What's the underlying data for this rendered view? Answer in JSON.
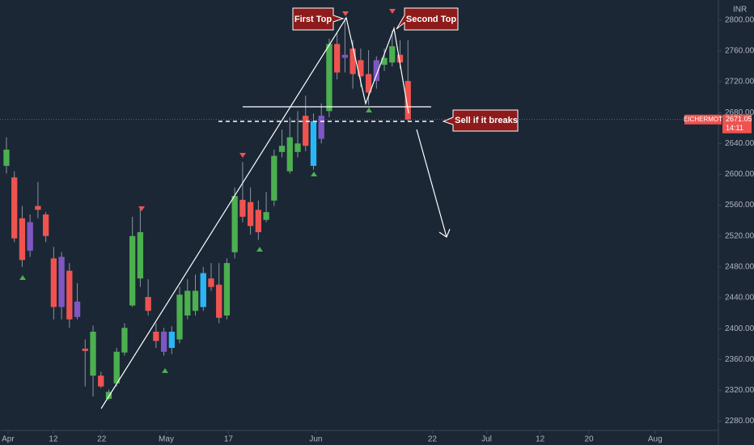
{
  "chart_data": {
    "type": "candlestick",
    "symbol": "EICHERMOT",
    "unit": "INR",
    "last_price": 2671.05,
    "countdown": "14:11",
    "annotations": [
      "First Top",
      "Second Top",
      "Sell if it breaks"
    ],
    "ylim": [
      2268,
      2826
    ],
    "yticks": [
      {
        "value": 2280,
        "label": "2280.00"
      },
      {
        "value": 2320,
        "label": "2320.00"
      },
      {
        "value": 2360,
        "label": "2360.00"
      },
      {
        "value": 2400,
        "label": "2400.00"
      },
      {
        "value": 2440,
        "label": "2440.00"
      },
      {
        "value": 2480,
        "label": "2480.00"
      },
      {
        "value": 2520,
        "label": "2520.00"
      },
      {
        "value": 2560,
        "label": "2560.00"
      },
      {
        "value": 2600,
        "label": "2600.00"
      },
      {
        "value": 2640,
        "label": "2640.00"
      },
      {
        "value": 2680,
        "label": "2680.00"
      },
      {
        "value": 2720,
        "label": "2720.00"
      },
      {
        "value": 2760,
        "label": "2760.00"
      },
      {
        "value": 2800,
        "label": "2800.00"
      }
    ],
    "xlim": [
      -0.82,
      90.44
    ],
    "xticks": [
      {
        "value": 0.2,
        "label": "Apr"
      },
      {
        "value": 5.96,
        "label": "12"
      },
      {
        "value": 12.1,
        "label": "22"
      },
      {
        "value": 20.3,
        "label": "May"
      },
      {
        "value": 28.2,
        "label": "17"
      },
      {
        "value": 39.3,
        "label": "Jun"
      },
      {
        "value": 54.1,
        "label": "22"
      },
      {
        "value": 61.0,
        "label": "Jul"
      },
      {
        "value": 67.8,
        "label": "12"
      },
      {
        "value": 74.0,
        "label": "20"
      },
      {
        "value": 82.4,
        "label": "Aug"
      }
    ],
    "candles": [
      {
        "open": 2611,
        "high": 2648,
        "low": 2601,
        "close": 2632,
        "color": "#4caf50"
      },
      {
        "open": 2596,
        "high": 2604,
        "low": 2512,
        "close": 2517,
        "color": "#ef5350"
      },
      {
        "open": 2543,
        "high": 2559,
        "low": 2480,
        "close": 2489,
        "color": "#ef5350"
      },
      {
        "open": 2538,
        "high": 2548,
        "low": 2493,
        "close": 2501,
        "color": "#7e57c2"
      },
      {
        "open": 2559,
        "high": 2590,
        "low": 2543,
        "close": 2554,
        "color": "#ef5350"
      },
      {
        "open": 2548,
        "high": 2551,
        "low": 2512,
        "close": 2520,
        "color": "#ef5350"
      },
      {
        "open": 2491,
        "high": 2506,
        "low": 2412,
        "close": 2428,
        "color": "#ef5350"
      },
      {
        "open": 2493,
        "high": 2499,
        "low": 2412,
        "close": 2428,
        "color": "#7e57c2"
      },
      {
        "open": 2475,
        "high": 2485,
        "low": 2401,
        "close": 2412,
        "color": "#ef5350"
      },
      {
        "open": 2435,
        "high": 2459,
        "low": 2412,
        "close": 2415,
        "color": "#7e57c2"
      },
      {
        "open": 2374,
        "high": 2386,
        "low": 2325,
        "close": 2371,
        "color": "#ef5350"
      },
      {
        "open": 2339,
        "high": 2404,
        "low": 2312,
        "close": 2396,
        "color": "#4caf50"
      },
      {
        "open": 2339,
        "high": 2344,
        "low": 2323,
        "close": 2325,
        "color": "#ef5350"
      },
      {
        "open": 2309,
        "high": 2321,
        "low": 2307,
        "close": 2318,
        "color": "#4caf50"
      },
      {
        "open": 2329,
        "high": 2375,
        "low": 2325,
        "close": 2370,
        "color": "#4caf50"
      },
      {
        "open": 2369,
        "high": 2407,
        "low": 2365,
        "close": 2401,
        "color": "#4caf50"
      },
      {
        "open": 2430,
        "high": 2545,
        "low": 2428,
        "close": 2520,
        "color": "#4caf50"
      },
      {
        "open": 2465,
        "high": 2556,
        "low": 2454,
        "close": 2525,
        "color": "#4caf50"
      },
      {
        "open": 2441,
        "high": 2464,
        "low": 2417,
        "close": 2423,
        "color": "#ef5350"
      },
      {
        "open": 2396,
        "high": 2407,
        "low": 2375,
        "close": 2384,
        "color": "#ef5350"
      },
      {
        "open": 2396,
        "high": 2401,
        "low": 2365,
        "close": 2370,
        "color": "#7e57c2"
      },
      {
        "open": 2375,
        "high": 2403,
        "low": 2367,
        "close": 2396,
        "color": "#29b6f6"
      },
      {
        "open": 2386,
        "high": 2454,
        "low": 2381,
        "close": 2444,
        "color": "#4caf50"
      },
      {
        "open": 2417,
        "high": 2464,
        "low": 2412,
        "close": 2449,
        "color": "#4caf50"
      },
      {
        "open": 2423,
        "high": 2470,
        "low": 2417,
        "close": 2449,
        "color": "#4caf50"
      },
      {
        "open": 2428,
        "high": 2480,
        "low": 2423,
        "close": 2472,
        "color": "#29b6f6"
      },
      {
        "open": 2465,
        "high": 2485,
        "low": 2449,
        "close": 2454,
        "color": "#ef5350"
      },
      {
        "open": 2457,
        "high": 2485,
        "low": 2407,
        "close": 2414,
        "color": "#ef5350"
      },
      {
        "open": 2417,
        "high": 2491,
        "low": 2412,
        "close": 2485,
        "color": "#4caf50"
      },
      {
        "open": 2499,
        "high": 2583,
        "low": 2491,
        "close": 2572,
        "color": "#4caf50"
      },
      {
        "open": 2567,
        "high": 2616,
        "low": 2538,
        "close": 2545,
        "color": "#ef5350"
      },
      {
        "open": 2564,
        "high": 2583,
        "low": 2522,
        "close": 2533,
        "color": "#ef5350"
      },
      {
        "open": 2554,
        "high": 2566,
        "low": 2515,
        "close": 2525,
        "color": "#ef5350"
      },
      {
        "open": 2541,
        "high": 2577,
        "low": 2538,
        "close": 2551,
        "color": "#4caf50"
      },
      {
        "open": 2566,
        "high": 2632,
        "low": 2559,
        "close": 2624,
        "color": "#4caf50"
      },
      {
        "open": 2629,
        "high": 2658,
        "low": 2622,
        "close": 2637,
        "color": "#4caf50"
      },
      {
        "open": 2604,
        "high": 2674,
        "low": 2601,
        "close": 2648,
        "color": "#4caf50"
      },
      {
        "open": 2629,
        "high": 2682,
        "low": 2622,
        "close": 2640,
        "color": "#4caf50"
      },
      {
        "open": 2676,
        "high": 2702,
        "low": 2630,
        "close": 2637,
        "color": "#ef5350"
      },
      {
        "open": 2611,
        "high": 2679,
        "low": 2606,
        "close": 2669,
        "color": "#29b6f6"
      },
      {
        "open": 2676,
        "high": 2692,
        "low": 2640,
        "close": 2646,
        "color": "#7e57c2"
      },
      {
        "open": 2682,
        "high": 2776,
        "low": 2674,
        "close": 2769,
        "color": "#4caf50"
      },
      {
        "open": 2769,
        "high": 2784,
        "low": 2723,
        "close": 2732,
        "color": "#ef5350"
      },
      {
        "open": 2755,
        "high": 2803,
        "low": 2732,
        "close": 2751,
        "color": "#7e57c2"
      },
      {
        "open": 2763,
        "high": 2774,
        "low": 2711,
        "close": 2730,
        "color": "#ef5350"
      },
      {
        "open": 2748,
        "high": 2763,
        "low": 2713,
        "close": 2727,
        "color": "#ef5350"
      },
      {
        "open": 2730,
        "high": 2761,
        "low": 2690,
        "close": 2706,
        "color": "#ef5350"
      },
      {
        "open": 2721,
        "high": 2753,
        "low": 2711,
        "close": 2748,
        "color": "#7e57c2"
      },
      {
        "open": 2742,
        "high": 2763,
        "low": 2734,
        "close": 2751,
        "color": "#4caf50"
      },
      {
        "open": 2745,
        "high": 2786,
        "low": 2740,
        "close": 2766,
        "color": "#4caf50"
      },
      {
        "open": 2755,
        "high": 2774,
        "low": 2737,
        "close": 2745,
        "color": "#ef5350"
      },
      {
        "open": 2721,
        "high": 2774,
        "low": 2669,
        "close": 2671,
        "color": "#ef5350"
      }
    ]
  }
}
